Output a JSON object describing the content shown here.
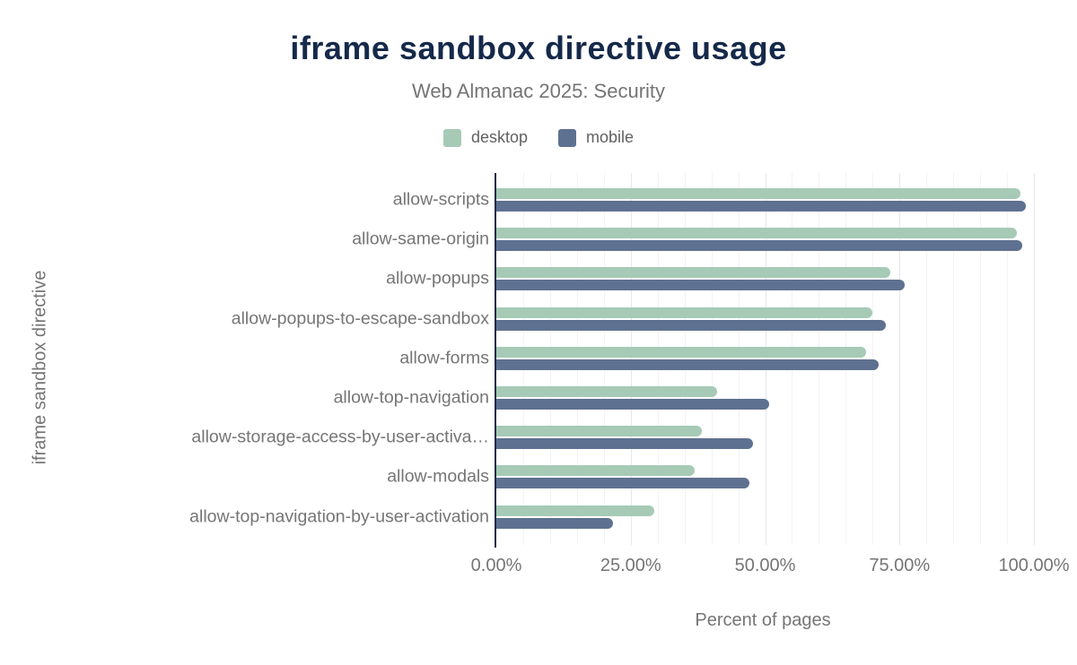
{
  "header": {
    "title": "iframe sandbox directive usage",
    "subtitle": "Web Almanac 2025: Security"
  },
  "legend": [
    {
      "label": "desktop",
      "color": "#a6cab6"
    },
    {
      "label": "mobile",
      "color": "#5e7190"
    }
  ],
  "chart_data": {
    "type": "bar",
    "orientation": "horizontal",
    "title": "iframe sandbox directive usage",
    "subtitle": "Web Almanac 2025: Security",
    "xlabel": "Percent of pages",
    "ylabel": "iframe sandbox directive",
    "xlim": [
      0,
      100
    ],
    "grid": true,
    "minor_grid_step": 5,
    "major_grid_step": 25,
    "legend_position": "top",
    "categories": [
      "allow-scripts",
      "allow-same-origin",
      "allow-popups",
      "allow-popups-to-escape-sandbox",
      "allow-forms",
      "allow-top-navigation",
      "allow-storage-access-by-user-activa…",
      "allow-modals",
      "allow-top-navigation-by-user-activation"
    ],
    "series": [
      {
        "name": "desktop",
        "color": "#a6cab6",
        "values": [
          97.5,
          96.8,
          73.3,
          70.0,
          68.7,
          41.0,
          38.2,
          36.9,
          29.3
        ]
      },
      {
        "name": "mobile",
        "color": "#5e7190",
        "values": [
          98.5,
          97.8,
          76.0,
          72.4,
          71.2,
          50.7,
          47.8,
          47.1,
          21.7
        ]
      }
    ],
    "x_ticks": [
      {
        "value": 0,
        "label": "0.00%"
      },
      {
        "value": 25,
        "label": "25.00%"
      },
      {
        "value": 50,
        "label": "50.00%"
      },
      {
        "value": 75,
        "label": "75.00%"
      },
      {
        "value": 100,
        "label": "100.00%"
      }
    ],
    "colors": {
      "axis_line": "#1b2b4a",
      "title_text": "#15294a",
      "label_text": "#757575",
      "grid_minor": "#f3f3f5",
      "grid_major": "#e7e7ec",
      "background": "#ffffff"
    }
  }
}
